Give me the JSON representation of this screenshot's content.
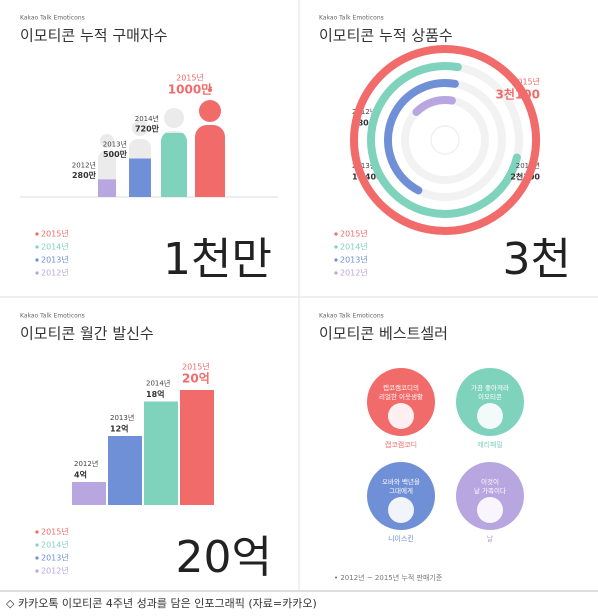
{
  "chart_data": [
    {
      "type": "pictogram",
      "subtitle": "Kakao Talk Emoticons",
      "title": "이모티콘 누적 구매자수",
      "categories": [
        "2012년",
        "2013년",
        "2014년",
        "2015년"
      ],
      "values": [
        280,
        500,
        720,
        1000
      ],
      "value_labels": [
        "280만",
        "500만",
        "720만",
        "1000만"
      ],
      "colors": [
        "#b8a6e0",
        "#6f8fd6",
        "#7fd3bd",
        "#f26b6b"
      ],
      "headline": "1천만"
    },
    {
      "type": "radial",
      "subtitle": "Kakao Talk Emoticons",
      "title": "이모티콘 누적 상품수",
      "categories": [
        "2012년",
        "2013년",
        "2014년",
        "2015년"
      ],
      "values": [
        480,
        1400,
        2300,
        3100
      ],
      "value_labels": [
        "480",
        "1천400",
        "2천300",
        "3천100"
      ],
      "colors": [
        "#b8a6e0",
        "#6f8fd6",
        "#7fd3bd",
        "#f26b6b"
      ],
      "headline": "3천"
    },
    {
      "type": "bar",
      "subtitle": "Kakao Talk Emoticons",
      "title": "이모티콘 월간 발신수",
      "categories": [
        "2012년",
        "2013년",
        "2014년",
        "2015년"
      ],
      "values": [
        4,
        12,
        18,
        20
      ],
      "value_labels": [
        "4억",
        "12억",
        "18억",
        "20억"
      ],
      "colors": [
        "#b8a6e0",
        "#6f8fd6",
        "#7fd3bd",
        "#f26b6b"
      ],
      "headline": "20억"
    }
  ],
  "bestseller": {
    "subtitle": "Kakao Talk Emoticons",
    "title": "이모티콘 베스트셀러",
    "items": [
      {
        "name": "캡코캠코디",
        "quote": [
          "캡코캠코디의",
          "리얼한 이웃생활"
        ],
        "color": "#f26b6b"
      },
      {
        "name": "제리패밀",
        "quote": [
          "가끔 좋아져라",
          "이모티콘"
        ],
        "color": "#7fd3bd"
      },
      {
        "name": "니이스킨",
        "quote": [
          "오바와 백년을",
          "그대에게"
        ],
        "color": "#6f8fd6"
      },
      {
        "name": "날",
        "quote": [
          "이것이",
          "날 가족이다"
        ],
        "color": "#b8a6e0"
      }
    ],
    "note": "• 2012년 ~ 2015년 누적 판매기준"
  },
  "caption": "◇ 카카오톡 이모티콘 4주년 성과를 담은 인포그래픽 (자료=카카오)"
}
